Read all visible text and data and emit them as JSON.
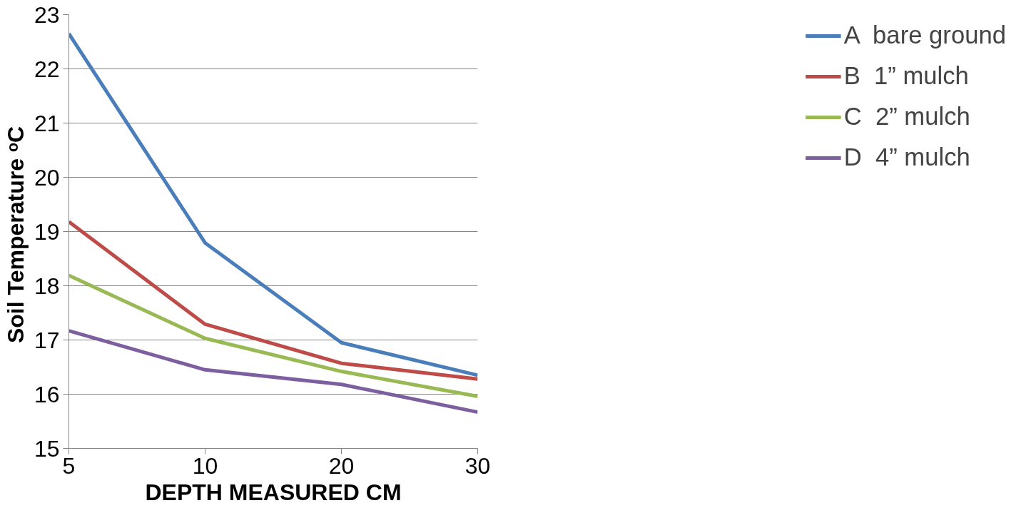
{
  "chart_data": {
    "type": "line",
    "xlabel": "DEPTH MEASURED CM",
    "ylabel": "Soil  Temperature ᵒC",
    "categories": [
      "5",
      "10",
      "20",
      "30"
    ],
    "series": [
      {
        "name": "A  bare ground",
        "color": "#4a7ebb",
        "values": [
          22.65,
          18.79,
          16.95,
          16.35
        ]
      },
      {
        "name": "B  1” mulch",
        "color": "#be4b48",
        "values": [
          19.18,
          17.29,
          16.57,
          16.28
        ]
      },
      {
        "name": "C  2” mulch",
        "color": "#98b954",
        "values": [
          18.19,
          17.03,
          16.42,
          15.96
        ]
      },
      {
        "name": "D  4” mulch",
        "color": "#7d5fa0",
        "values": [
          17.17,
          16.45,
          16.18,
          15.67
        ]
      }
    ],
    "ylim": [
      15,
      23
    ],
    "yticks": [
      15,
      16,
      17,
      18,
      19,
      20,
      21,
      22,
      23
    ],
    "grid": "y",
    "legend": "right",
    "marker": "none",
    "line_style": "solid"
  }
}
